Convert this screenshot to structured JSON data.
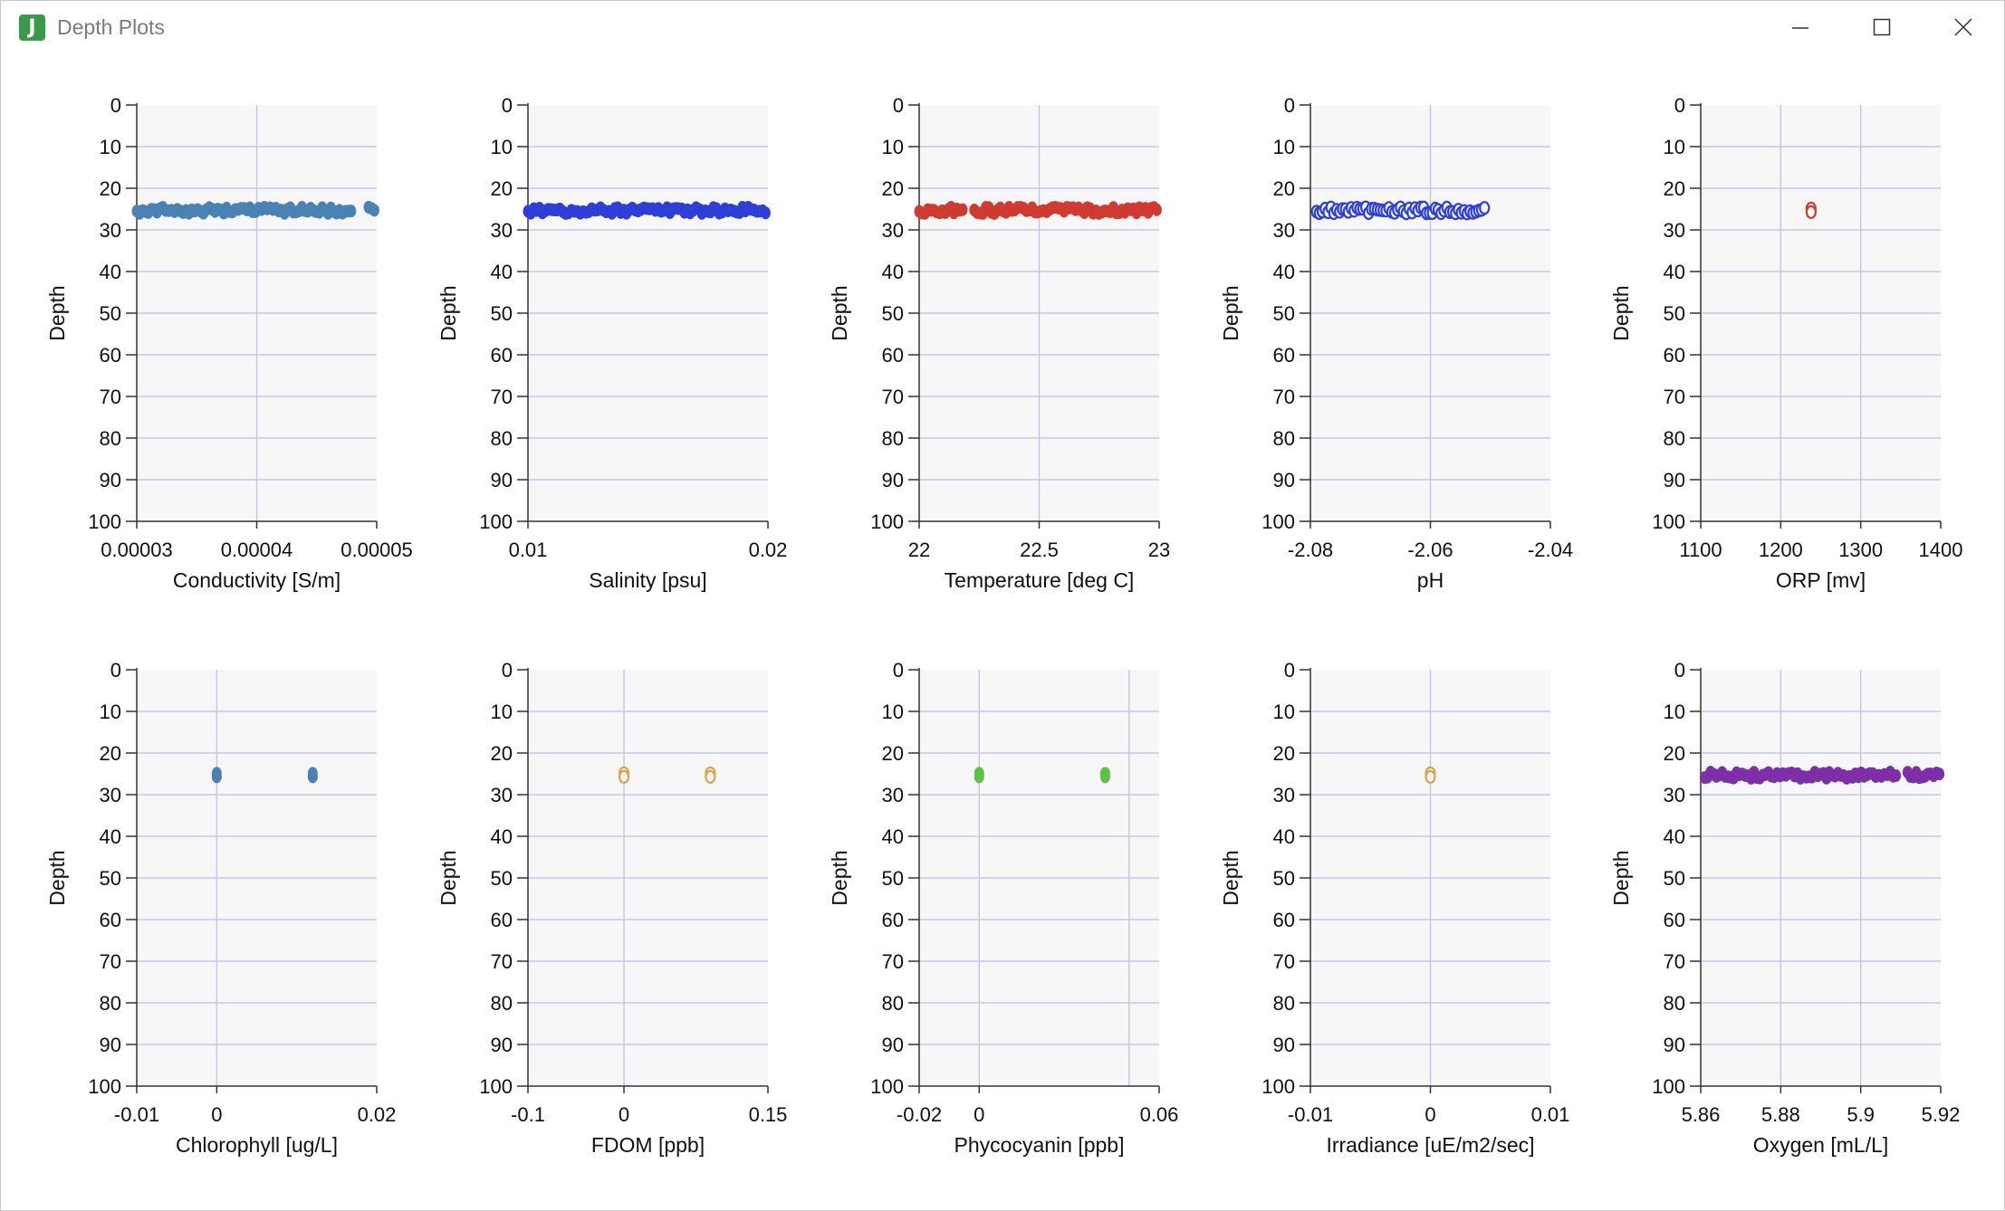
{
  "window": {
    "title": "Depth Plots",
    "icon": "app-logo-j",
    "icon_letter": "J",
    "controls": [
      "minimize-icon",
      "maximize-icon",
      "close-icon"
    ]
  },
  "colors": {
    "grid": "#c7c7ea",
    "plot_background": "#f7f7f7",
    "axis": "#333333",
    "conductivity": "#4a82b4",
    "salinity": "#2e3fd6",
    "temperature": "#cf3b31",
    "ph": "#2e3fd6",
    "orp": "#cf3b31",
    "chlorophyll": "#4a82b4",
    "fdom": "#e0a050",
    "phycocyanin": "#5cc144",
    "irradiance": "#e0a050",
    "oxygen": "#7e2fa8"
  },
  "chart_data": [
    {
      "type": "scatter",
      "xlabel": "Conductivity [S/m]",
      "ylabel": "Depth",
      "xlim": [
        3e-05,
        5e-05
      ],
      "ylim": [
        0,
        100
      ],
      "y_inverted": true,
      "xticks": [
        "0.00003",
        "0.00004",
        "0.00005"
      ],
      "xtick_values": [
        3e-05,
        4e-05,
        5e-05
      ],
      "yticks": [
        "0",
        "10",
        "20",
        "30",
        "40",
        "50",
        "60",
        "70",
        "80",
        "90",
        "100"
      ],
      "series": [
        {
          "color_key": "conductivity",
          "marker": "filled",
          "depth": 25.3,
          "x_range": [
            3e-05,
            5e-05
          ],
          "gaps": [
            [
              4.8e-05,
              4.93e-05
            ]
          ]
        }
      ]
    },
    {
      "type": "scatter",
      "xlabel": "Salinity [psu]",
      "ylabel": "Depth",
      "xlim": [
        0.01,
        0.02
      ],
      "ylim": [
        0,
        100
      ],
      "y_inverted": true,
      "xticks": [
        "0.01",
        "0.02"
      ],
      "xtick_values": [
        0.01,
        0.02
      ],
      "yticks": [
        "0",
        "10",
        "20",
        "30",
        "40",
        "50",
        "60",
        "70",
        "80",
        "90",
        "100"
      ],
      "series": [
        {
          "color_key": "salinity",
          "marker": "filled",
          "depth": 25.3,
          "x_range": [
            0.01,
            0.02
          ],
          "gaps": []
        }
      ]
    },
    {
      "type": "scatter",
      "xlabel": "Temperature [deg C]",
      "ylabel": "Depth",
      "xlim": [
        22,
        23
      ],
      "ylim": [
        0,
        100
      ],
      "y_inverted": true,
      "xticks": [
        "22",
        "22.5",
        "23"
      ],
      "xtick_values": [
        22,
        22.5,
        23
      ],
      "yticks": [
        "0",
        "10",
        "20",
        "30",
        "40",
        "50",
        "60",
        "70",
        "80",
        "90",
        "100"
      ],
      "series": [
        {
          "color_key": "temperature",
          "marker": "filled",
          "depth": 25.3,
          "x_range": [
            22,
            23
          ],
          "gaps": [
            [
              22.19,
              22.22
            ]
          ]
        }
      ]
    },
    {
      "type": "scatter",
      "xlabel": "pH",
      "ylabel": "Depth",
      "xlim": [
        -2.08,
        -2.04
      ],
      "ylim": [
        0,
        100
      ],
      "y_inverted": true,
      "xticks": [
        "-2.08",
        "-2.06",
        "-2.04"
      ],
      "xtick_values": [
        -2.08,
        -2.06,
        -2.04
      ],
      "yticks": [
        "0",
        "10",
        "20",
        "30",
        "40",
        "50",
        "60",
        "70",
        "80",
        "90",
        "100"
      ],
      "series": [
        {
          "color_key": "ph",
          "marker": "hollow",
          "depth": 25.3,
          "x_range": [
            -2.079,
            -2.0508
          ],
          "gaps": []
        }
      ]
    },
    {
      "type": "scatter",
      "xlabel": "ORP [mv]",
      "ylabel": "Depth",
      "xlim": [
        1100,
        1400
      ],
      "ylim": [
        0,
        100
      ],
      "y_inverted": true,
      "xticks": [
        "1100",
        "1200",
        "1300",
        "1400"
      ],
      "xtick_values": [
        1100,
        1200,
        1300,
        1400
      ],
      "yticks": [
        "0",
        "10",
        "20",
        "30",
        "40",
        "50",
        "60",
        "70",
        "80",
        "90",
        "100"
      ],
      "series": [
        {
          "color_key": "orp",
          "marker": "hollow",
          "points": [
            {
              "x": 1238,
              "depth": 25.3
            }
          ]
        }
      ]
    },
    {
      "type": "scatter",
      "xlabel": "Chlorophyll [ug/L]",
      "ylabel": "Depth",
      "xlim": [
        -0.01,
        0.02
      ],
      "ylim": [
        0,
        100
      ],
      "y_inverted": true,
      "xticks": [
        "-0.01",
        "0",
        "0.02"
      ],
      "xtick_values": [
        -0.01,
        0,
        0.02
      ],
      "yticks": [
        "0",
        "10",
        "20",
        "30",
        "40",
        "50",
        "60",
        "70",
        "80",
        "90",
        "100"
      ],
      "series": [
        {
          "color_key": "chlorophyll",
          "marker": "filled",
          "points": [
            {
              "x": 0,
              "depth": 25.3
            },
            {
              "x": 0.012,
              "depth": 25.3
            }
          ]
        }
      ]
    },
    {
      "type": "scatter",
      "xlabel": "FDOM [ppb]",
      "ylabel": "Depth",
      "xlim": [
        -0.1,
        0.15
      ],
      "ylim": [
        0,
        100
      ],
      "y_inverted": true,
      "xticks": [
        "-0.1",
        "0",
        "0.15"
      ],
      "xtick_values": [
        -0.1,
        0,
        0.15
      ],
      "yticks": [
        "0",
        "10",
        "20",
        "30",
        "40",
        "50",
        "60",
        "70",
        "80",
        "90",
        "100"
      ],
      "series": [
        {
          "color_key": "fdom",
          "marker": "hollow",
          "points": [
            {
              "x": 0,
              "depth": 25.3
            },
            {
              "x": 0.09,
              "depth": 25.3
            }
          ]
        }
      ]
    },
    {
      "type": "scatter",
      "xlabel": "Phycocyanin [ppb]",
      "ylabel": "Depth",
      "xlim": [
        -0.02,
        0.06
      ],
      "ylim": [
        0,
        100
      ],
      "y_inverted": true,
      "xticks": [
        "-0.02",
        "0",
        "0.06"
      ],
      "xtick_values": [
        -0.02,
        0,
        0.06
      ],
      "extra_gridlines": [
        0.05
      ],
      "yticks": [
        "0",
        "10",
        "20",
        "30",
        "40",
        "50",
        "60",
        "70",
        "80",
        "90",
        "100"
      ],
      "series": [
        {
          "color_key": "phycocyanin",
          "marker": "filled",
          "points": [
            {
              "x": 0,
              "depth": 25.3
            },
            {
              "x": 0.042,
              "depth": 25.3
            }
          ]
        }
      ]
    },
    {
      "type": "scatter",
      "xlabel": "Irradiance [uE/m2/sec]",
      "ylabel": "Depth",
      "xlim": [
        -0.01,
        0.01
      ],
      "ylim": [
        0,
        100
      ],
      "y_inverted": true,
      "xticks": [
        "-0.01",
        "0",
        "0.01"
      ],
      "xtick_values": [
        -0.01,
        0,
        0.01
      ],
      "yticks": [
        "0",
        "10",
        "20",
        "30",
        "40",
        "50",
        "60",
        "70",
        "80",
        "90",
        "100"
      ],
      "series": [
        {
          "color_key": "irradiance",
          "marker": "hollow",
          "points": [
            {
              "x": 0,
              "depth": 25.3
            }
          ]
        }
      ]
    },
    {
      "type": "scatter",
      "xlabel": "Oxygen [mL/L]",
      "ylabel": "Depth",
      "xlim": [
        5.86,
        5.92
      ],
      "ylim": [
        0,
        100
      ],
      "y_inverted": true,
      "xticks": [
        "5.86",
        "5.88",
        "5.9",
        "5.92"
      ],
      "xtick_values": [
        5.86,
        5.88,
        5.9,
        5.92
      ],
      "yticks": [
        "0",
        "10",
        "20",
        "30",
        "40",
        "50",
        "60",
        "70",
        "80",
        "90",
        "100"
      ],
      "series": [
        {
          "color_key": "oxygen",
          "marker": "filled",
          "depth": 25.3,
          "x_range": [
            5.861,
            5.92
          ],
          "gaps": [
            [
              5.9092,
              5.9115
            ]
          ]
        }
      ]
    }
  ]
}
